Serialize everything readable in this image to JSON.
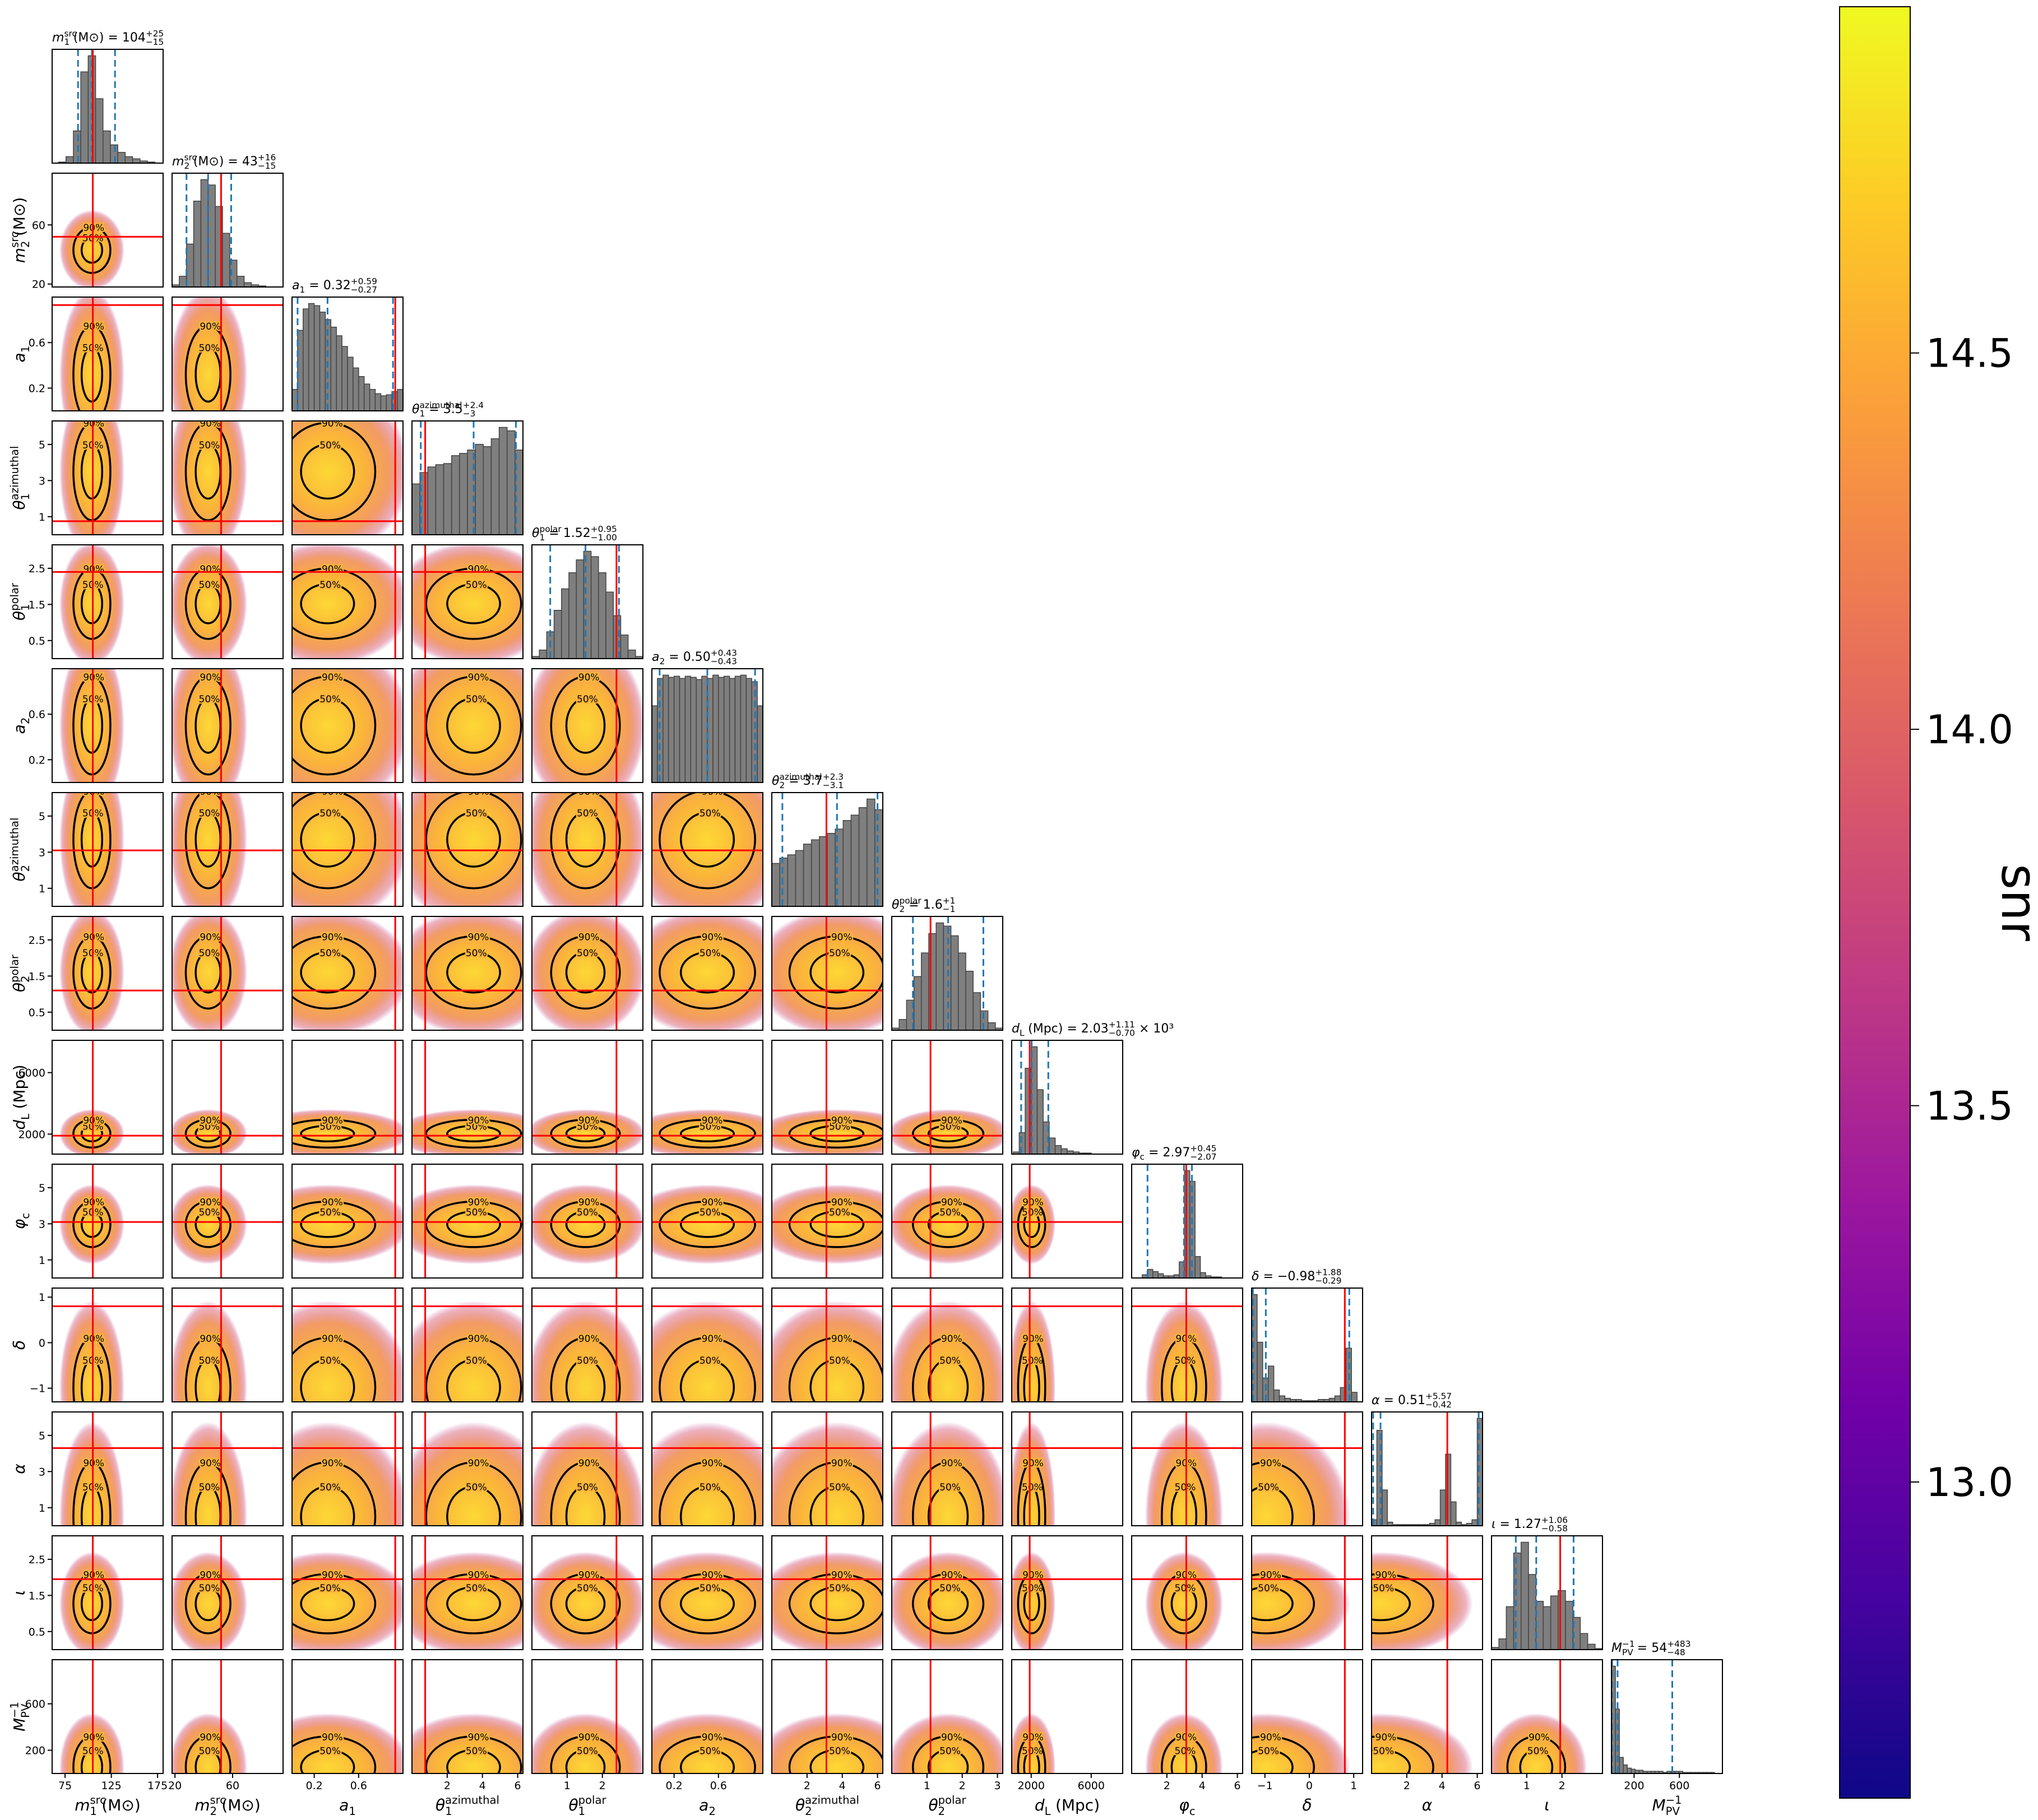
{
  "chart_data": {
    "type": "corner",
    "title_eq": "=",
    "hist_color": "#7f7f7f",
    "truth_color": "#ff0000",
    "quantile_color": "#1f77b4",
    "contour_color": "#000000",
    "contour_levels": [
      {
        "value": 50,
        "label": "50%"
      },
      {
        "value": 90,
        "label": "90%"
      }
    ],
    "colorbar": {
      "label": "snr",
      "lim": [
        12.58,
        14.96
      ],
      "ticks": [
        {
          "value": 13,
          "label": "13.0"
        },
        13.5,
        {
          "value": 14,
          "label": "14.0"
        },
        14.5
      ],
      "colors": [
        "#0d0887",
        "#46039f",
        "#7201a8",
        "#9c179e",
        "#bd3786",
        "#d8576b",
        "#ed7953",
        "#fb9f3a",
        "#fdca26",
        "#f0f921"
      ]
    },
    "params": [
      {
        "label": {
          "main": "m",
          "sub": "1",
          "sup": "src",
          "unit": "(M⊙)"
        },
        "lim": [
          61,
          181
        ],
        "xticks": [
          75,
          125,
          175
        ],
        "bins": [
          60,
          68,
          76,
          84,
          92,
          100,
          108,
          116,
          124,
          132,
          140,
          148,
          156,
          164,
          172,
          180
        ],
        "counts": [
          0,
          1,
          6,
          30,
          85,
          100,
          60,
          30,
          17,
          10,
          6,
          4,
          2,
          1,
          0
        ],
        "quantiles": [
          89,
          104,
          129
        ],
        "truth": 105,
        "title": {
          "value": "104",
          "plus": "+25",
          "minus": "−15"
        }
      },
      {
        "label": {
          "main": "m",
          "sub": "2",
          "sup": "src",
          "unit": "(M⊙)"
        },
        "lim": [
          18,
          95
        ],
        "xticks": [
          20,
          60
        ],
        "yticks": [
          20,
          60
        ],
        "bins": [
          18,
          23,
          28,
          33,
          38,
          43,
          48,
          53,
          58,
          63,
          68,
          73,
          78,
          83,
          88,
          93
        ],
        "counts": [
          2,
          10,
          40,
          80,
          100,
          95,
          75,
          50,
          25,
          10,
          4,
          2,
          1,
          0,
          0
        ],
        "quantiles": [
          28,
          43,
          59
        ],
        "truth": 52,
        "title": {
          "value": "43",
          "plus": "+16",
          "minus": "−15"
        }
      },
      {
        "label": {
          "main": "a",
          "sub": "1"
        },
        "lim": [
          0,
          1
        ],
        "xticks": [
          0.2,
          0.6
        ],
        "yticks": [
          0.2,
          0.6
        ],
        "bins": [
          0,
          0.05,
          0.1,
          0.15,
          0.2,
          0.25,
          0.3,
          0.35,
          0.4,
          0.45,
          0.5,
          0.55,
          0.6,
          0.65,
          0.7,
          0.75,
          0.8,
          0.85,
          0.9,
          0.95,
          1
        ],
        "counts": [
          20,
          75,
          95,
          100,
          98,
          92,
          85,
          78,
          70,
          60,
          50,
          40,
          32,
          25,
          20,
          16,
          14,
          15,
          18,
          20
        ],
        "quantiles": [
          0.05,
          0.32,
          0.91
        ],
        "truth": 0.93,
        "title": {
          "value": "0.32",
          "plus": "+0.59",
          "minus": "−0.27"
        }
      },
      {
        "label": {
          "main": "θ",
          "sub": "1",
          "sup": "azimuthal"
        },
        "lim": [
          0,
          6.3
        ],
        "xticks": [
          2,
          4,
          6
        ],
        "yticks": [
          1,
          3,
          5
        ],
        "bins": [
          0,
          0.45,
          0.9,
          1.35,
          1.8,
          2.25,
          2.7,
          3.15,
          3.6,
          4.05,
          4.5,
          4.95,
          5.4,
          5.85,
          6.3
        ],
        "counts": [
          45,
          55,
          60,
          62,
          63,
          70,
          72,
          75,
          80,
          78,
          85,
          95,
          92,
          75
        ],
        "quantiles": [
          0.5,
          3.5,
          5.9
        ],
        "truth": 0.75,
        "title": {
          "value": "3.5",
          "plus": "+2.4",
          "minus": "−3"
        }
      },
      {
        "label": {
          "main": "θ",
          "sub": "1",
          "sup": "polar"
        },
        "lim": [
          0,
          3.15
        ],
        "xticks": [
          1,
          2
        ],
        "yticks": [
          0.5,
          1.5,
          2.5
        ],
        "bins": [
          0,
          0.21,
          0.42,
          0.63,
          0.84,
          1.05,
          1.26,
          1.47,
          1.68,
          1.89,
          2.1,
          2.31,
          2.52,
          2.73,
          2.94,
          3.15
        ],
        "counts": [
          2,
          8,
          25,
          45,
          65,
          80,
          92,
          100,
          95,
          80,
          62,
          40,
          22,
          8,
          2
        ],
        "quantiles": [
          0.52,
          1.52,
          2.47
        ],
        "truth": 2.4,
        "title": {
          "value": "1.52",
          "plus": "+0.95",
          "minus": "−1.00"
        }
      },
      {
        "label": {
          "main": "a",
          "sub": "2"
        },
        "lim": [
          0,
          1
        ],
        "xticks": [
          0.2,
          0.6
        ],
        "yticks": [
          0.2,
          0.6
        ],
        "bins": [
          0,
          0.05,
          0.1,
          0.15,
          0.2,
          0.25,
          0.3,
          0.35,
          0.4,
          0.45,
          0.5,
          0.55,
          0.6,
          0.65,
          0.7,
          0.75,
          0.8,
          0.85,
          0.9,
          0.95,
          1
        ],
        "counts": [
          70,
          95,
          98,
          96,
          97,
          95,
          97,
          96,
          94,
          97,
          95,
          98,
          96,
          97,
          95,
          97,
          98,
          95,
          92,
          70
        ],
        "quantiles": [
          0.07,
          0.5,
          0.93
        ],
        "truth": null,
        "title": {
          "value": "0.50",
          "plus": "+0.43",
          "minus": "−0.43"
        }
      },
      {
        "label": {
          "main": "θ",
          "sub": "2",
          "sup": "azimuthal"
        },
        "lim": [
          0,
          6.3
        ],
        "xticks": [
          2,
          4,
          6
        ],
        "yticks": [
          1,
          3,
          5
        ],
        "bins": [
          0,
          0.45,
          0.9,
          1.35,
          1.8,
          2.25,
          2.7,
          3.15,
          3.6,
          4.05,
          4.5,
          4.95,
          5.4,
          5.85,
          6.3
        ],
        "counts": [
          40,
          45,
          48,
          52,
          58,
          62,
          65,
          68,
          72,
          80,
          85,
          92,
          100,
          90
        ],
        "quantiles": [
          0.6,
          3.7,
          6.0
        ],
        "truth": 3.1,
        "title": {
          "value": "3.7",
          "plus": "+2.3",
          "minus": "−3.1"
        }
      },
      {
        "label": {
          "main": "θ",
          "sub": "2",
          "sup": "polar"
        },
        "lim": [
          0,
          3.15
        ],
        "xticks": [
          1,
          2,
          3
        ],
        "yticks": [
          0.5,
          1.5,
          2.5
        ],
        "bins": [
          0,
          0.21,
          0.42,
          0.63,
          0.84,
          1.05,
          1.26,
          1.47,
          1.68,
          1.89,
          2.1,
          2.31,
          2.52,
          2.73,
          2.94,
          3.15
        ],
        "counts": [
          2,
          10,
          28,
          50,
          72,
          90,
          100,
          97,
          88,
          72,
          55,
          35,
          18,
          7,
          2
        ],
        "quantiles": [
          0.6,
          1.6,
          2.6
        ],
        "truth": 1.1,
        "title": {
          "value": "1.6",
          "plus": "+1",
          "minus": "−1"
        }
      },
      {
        "label": {
          "main": "d",
          "sub": "L",
          "unit": "(Mpc)"
        },
        "lim": [
          700,
          8100
        ],
        "xticks": [
          2000,
          6000
        ],
        "yticks": [
          2000,
          6000
        ],
        "bins": [
          800,
          1200,
          1600,
          2000,
          2400,
          2800,
          3200,
          3600,
          4000,
          4400,
          4800,
          5200,
          5600,
          6000,
          6400,
          6800,
          7200,
          7600,
          8000
        ],
        "counts": [
          2,
          20,
          80,
          100,
          60,
          30,
          15,
          8,
          5,
          3,
          2,
          1,
          1,
          0,
          0,
          0,
          0,
          0
        ],
        "quantiles": [
          1330,
          2030,
          3140
        ],
        "truth": 1900,
        "title": {
          "value": "2.03",
          "plus": "+1.11",
          "minus": "−0.70",
          "suffix": "× 10³"
        }
      },
      {
        "label": {
          "main": "φ",
          "sub": "c"
        },
        "lim": [
          0,
          6.3
        ],
        "xticks": [
          2,
          4,
          6
        ],
        "yticks": [
          1,
          3,
          5
        ],
        "bins": [
          0,
          0.3,
          0.6,
          0.9,
          1.2,
          1.5,
          1.8,
          2.1,
          2.4,
          2.7,
          3,
          3.3,
          3.6,
          3.9,
          4.2,
          4.5,
          4.8,
          5.1,
          5.4,
          5.7,
          6,
          6.3
        ],
        "counts": [
          0,
          0,
          3,
          8,
          6,
          4,
          2,
          2,
          3,
          15,
          100,
          90,
          20,
          5,
          2,
          1,
          1,
          0,
          0,
          0,
          0
        ],
        "quantiles": [
          0.9,
          2.97,
          3.42
        ],
        "truth": 3.1,
        "title": {
          "value": "2.97",
          "plus": "+0.45",
          "minus": "−2.07"
        }
      },
      {
        "label": {
          "main": "δ"
        },
        "lim": [
          -1.3,
          1.2
        ],
        "xticks": [
          {
            "value": -1,
            "label": "−1"
          },
          0,
          1
        ],
        "yticks": [
          {
            "value": -1,
            "label": "−1"
          },
          0,
          1
        ],
        "bins": [
          -1.3,
          -1.175,
          -1.05,
          -0.925,
          -0.8,
          -0.675,
          -0.55,
          -0.425,
          -0.3,
          -0.175,
          -0.05,
          0.075,
          0.2,
          0.325,
          0.45,
          0.575,
          0.7,
          0.825,
          0.95,
          1.075,
          1.2
        ],
        "counts": [
          90,
          50,
          20,
          30,
          10,
          5,
          3,
          2,
          2,
          1,
          1,
          1,
          2,
          2,
          3,
          5,
          12,
          45,
          8,
          0
        ],
        "quantiles": [
          -1.27,
          -0.98,
          0.9
        ],
        "truth": 0.8,
        "title": {
          "value": "−0.98",
          "plus": "+1.88",
          "minus": "−0.29"
        }
      },
      {
        "label": {
          "main": "α"
        },
        "lim": [
          0,
          6.3
        ],
        "xticks": [
          2,
          4,
          6
        ],
        "yticks": [
          1,
          3,
          5
        ],
        "bins": [
          0,
          0.3,
          0.6,
          0.9,
          1.2,
          1.5,
          1.8,
          2.1,
          2.4,
          2.7,
          3,
          3.3,
          3.6,
          3.9,
          4.2,
          4.5,
          4.8,
          5.1,
          5.4,
          5.7,
          6,
          6.3
        ],
        "counts": [
          5,
          80,
          30,
          3,
          1,
          1,
          1,
          1,
          1,
          1,
          1,
          2,
          5,
          30,
          60,
          20,
          3,
          1,
          2,
          5,
          90
        ],
        "quantiles": [
          0.09,
          0.51,
          6.08
        ],
        "truth": 4.3,
        "title": {
          "value": "0.51",
          "plus": "+5.57",
          "minus": "−0.42"
        }
      },
      {
        "label": {
          "main": "ι"
        },
        "lim": [
          0,
          3.15
        ],
        "xticks": [
          1,
          2
        ],
        "yticks": [
          0.5,
          1.5,
          2.5
        ],
        "bins": [
          0,
          0.21,
          0.42,
          0.63,
          0.84,
          1.05,
          1.26,
          1.47,
          1.68,
          1.89,
          2.1,
          2.31,
          2.52,
          2.73,
          2.94,
          3.15
        ],
        "counts": [
          2,
          10,
          40,
          90,
          100,
          70,
          45,
          40,
          50,
          55,
          45,
          30,
          15,
          5,
          1
        ],
        "quantiles": [
          0.69,
          1.27,
          2.33
        ],
        "truth": 1.95,
        "title": {
          "value": "1.27",
          "plus": "+1.06",
          "minus": "−0.58"
        }
      },
      {
        "label": {
          "main": "M",
          "sub": "PV",
          "sup": "−1"
        },
        "lim": [
          0,
          980
        ],
        "xticks": [
          200,
          600
        ],
        "yticks": [
          200,
          600
        ],
        "bins": [
          0,
          35,
          70,
          105,
          140,
          175,
          210,
          245,
          280,
          315,
          350,
          385,
          420,
          455,
          490,
          525,
          560,
          595,
          630,
          665,
          700,
          735,
          770,
          805,
          840,
          875,
          910,
          945,
          980
        ],
        "counts": [
          100,
          60,
          15,
          8,
          5,
          4,
          3,
          3,
          2,
          2,
          2,
          2,
          2,
          1,
          2,
          2,
          2,
          2,
          1,
          1,
          1,
          1,
          1,
          1,
          1,
          1,
          0,
          0
        ],
        "quantiles": [
          6,
          54,
          537
        ],
        "truth": null,
        "title": {
          "value": "54",
          "plus": "+483",
          "minus": "−48"
        }
      }
    ]
  }
}
